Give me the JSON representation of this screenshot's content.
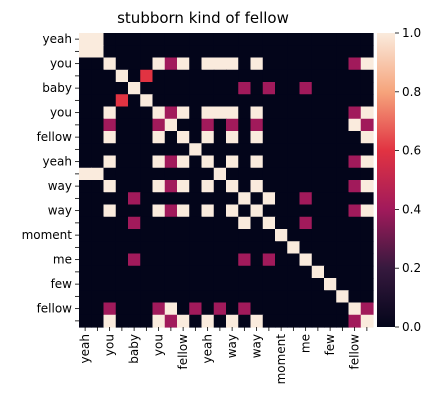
{
  "chart_data": {
    "type": "heatmap",
    "title": "stubborn kind of fellow",
    "x_labels": [
      "yeah",
      "",
      "you",
      "",
      "baby",
      "",
      "you",
      "",
      "fellow",
      "",
      "yeah",
      "",
      "way",
      "",
      "way",
      "",
      "moment",
      "",
      "me",
      "",
      "few",
      "",
      "fellow",
      ""
    ],
    "y_labels": [
      "yeah",
      "",
      "you",
      "",
      "baby",
      "",
      "you",
      "",
      "fellow",
      "",
      "yeah",
      "",
      "way",
      "",
      "way",
      "",
      "moment",
      "",
      "me",
      "",
      "few",
      "",
      "fellow",
      ""
    ],
    "values": [
      [
        1,
        1,
        0,
        0,
        0,
        0,
        0,
        0,
        0,
        0,
        0,
        0,
        0,
        0,
        0,
        0,
        0,
        0,
        0,
        0,
        0,
        0,
        0,
        0
      ],
      [
        1,
        1,
        0,
        0,
        0,
        0,
        0,
        0,
        0,
        0,
        0,
        0,
        0,
        0,
        0,
        0,
        0,
        0,
        0,
        0,
        0,
        0,
        0,
        0
      ],
      [
        0,
        0,
        1,
        0,
        0,
        0,
        1,
        0.4,
        1,
        0,
        1,
        1,
        1,
        0,
        1,
        0,
        0,
        0,
        0,
        0,
        0,
        0,
        0.4,
        1
      ],
      [
        0,
        0,
        0,
        1,
        0,
        0.6,
        0,
        0,
        0,
        0,
        0,
        0,
        0,
        0,
        0,
        0,
        0,
        0,
        0,
        0,
        0,
        0,
        0,
        0
      ],
      [
        0,
        0,
        0,
        0,
        1,
        0,
        0,
        0,
        0,
        0,
        0,
        0,
        0,
        0.4,
        0,
        0.4,
        0,
        0,
        0.4,
        0,
        0,
        0,
        0,
        0
      ],
      [
        0,
        0,
        0,
        0.6,
        0,
        1,
        0,
        0,
        0,
        0,
        0,
        0,
        0,
        0,
        0,
        0,
        0,
        0,
        0,
        0,
        0,
        0,
        0,
        0
      ],
      [
        0,
        0,
        1,
        0,
        0,
        0,
        1,
        0.4,
        1,
        0,
        1,
        1,
        1,
        0,
        1,
        0,
        0,
        0,
        0,
        0,
        0,
        0,
        0.4,
        1
      ],
      [
        0,
        0,
        0.4,
        0,
        0,
        0,
        0.4,
        1,
        0,
        0,
        0.4,
        0,
        0.4,
        0,
        0.4,
        0,
        0,
        0,
        0,
        0,
        0,
        0,
        1,
        0.4
      ],
      [
        0,
        0,
        1,
        0,
        0,
        0,
        1,
        0,
        1,
        0,
        1,
        0,
        1,
        0,
        1,
        0,
        0,
        0,
        0,
        0,
        0,
        0,
        0,
        1
      ],
      [
        0,
        0,
        0,
        0,
        0,
        0,
        0,
        0,
        0,
        1,
        0,
        0,
        0,
        0,
        0,
        0,
        0,
        0,
        0,
        0,
        0,
        0,
        0,
        0
      ],
      [
        0,
        0,
        1,
        0,
        0,
        0,
        1,
        0.4,
        1,
        0,
        1,
        0,
        1,
        0,
        1,
        0,
        0,
        0,
        0,
        0,
        0,
        0,
        0.4,
        1
      ],
      [
        1,
        1,
        0,
        0,
        0,
        0,
        0,
        0,
        0,
        0,
        0,
        1,
        0,
        0,
        0,
        0,
        0,
        0,
        0,
        0,
        0,
        0,
        0,
        0
      ],
      [
        0,
        0,
        1,
        0,
        0,
        0,
        1,
        0.4,
        1,
        0,
        1,
        0,
        1,
        0,
        1,
        0,
        0,
        0,
        0,
        0,
        0,
        0,
        0.4,
        1
      ],
      [
        0,
        0,
        0,
        0,
        0.4,
        0,
        0,
        0,
        0,
        0,
        0,
        0,
        0,
        1,
        0,
        1,
        0,
        0,
        0.4,
        0,
        0,
        0,
        0,
        0
      ],
      [
        0,
        0,
        1,
        0,
        0,
        0,
        1,
        0.4,
        1,
        0,
        1,
        0,
        1,
        0,
        1,
        0,
        0,
        0,
        0,
        0,
        0,
        0,
        0.4,
        1
      ],
      [
        0,
        0,
        0,
        0,
        0.4,
        0,
        0,
        0,
        0,
        0,
        0,
        0,
        0,
        1,
        0,
        1,
        0,
        0,
        0.4,
        0,
        0,
        0,
        0,
        0
      ],
      [
        0,
        0,
        0,
        0,
        0,
        0,
        0,
        0,
        0,
        0,
        0,
        0,
        0,
        0,
        0,
        0,
        1,
        0,
        0,
        0,
        0,
        0,
        0,
        0
      ],
      [
        0,
        0,
        0,
        0,
        0,
        0,
        0,
        0,
        0,
        0,
        0,
        0,
        0,
        0,
        0,
        0,
        0,
        1,
        0,
        0,
        0,
        0,
        0,
        0
      ],
      [
        0,
        0,
        0,
        0,
        0.4,
        0,
        0,
        0,
        0,
        0,
        0,
        0,
        0,
        0.4,
        0,
        0.4,
        0,
        0,
        1,
        0,
        0,
        0,
        0,
        0
      ],
      [
        0,
        0,
        0,
        0,
        0,
        0,
        0,
        0,
        0,
        0,
        0,
        0,
        0,
        0,
        0,
        0,
        0,
        0,
        0,
        1,
        0,
        0,
        0,
        0
      ],
      [
        0,
        0,
        0,
        0,
        0,
        0,
        0,
        0,
        0,
        0,
        0,
        0,
        0,
        0,
        0,
        0,
        0,
        0,
        0,
        0,
        1,
        0,
        0,
        0
      ],
      [
        0,
        0,
        0,
        0,
        0,
        0,
        0,
        0,
        0,
        0,
        0,
        0,
        0,
        0,
        0,
        0,
        0,
        0,
        0,
        0,
        0,
        1,
        0,
        0
      ],
      [
        0,
        0,
        0.4,
        0,
        0,
        0,
        0.4,
        1,
        0,
        0.4,
        0,
        0.4,
        0,
        0.4,
        0,
        0,
        0,
        0,
        0,
        0,
        0,
        0,
        1,
        0.4
      ],
      [
        0,
        0,
        1,
        0,
        0,
        0,
        1,
        0.4,
        1,
        0,
        1,
        0,
        1,
        0,
        1,
        0,
        0,
        0,
        0,
        0,
        0,
        0,
        0.4,
        1
      ]
    ],
    "colorbar": {
      "min": 0,
      "max": 1,
      "ticks": [
        "0.0",
        "0.2",
        "0.4",
        "0.6",
        "0.8",
        "1.0"
      ]
    }
  }
}
